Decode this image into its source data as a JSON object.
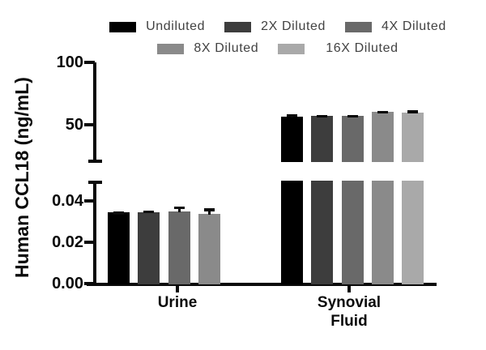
{
  "chart_data": {
    "type": "bar",
    "title": "",
    "ylabel": "Human CCL18 (ng/mL)",
    "xlabel": "",
    "categories": [
      "Urine",
      "Synovial Fluid"
    ],
    "category_label_lines": [
      [
        "Urine"
      ],
      [
        "Synovial",
        "Fluid"
      ]
    ],
    "series": [
      {
        "name": "Undiluted",
        "color": "#000000",
        "values": [
          0.0346,
          56.8
        ],
        "errors": [
          0.0003,
          1.9
        ]
      },
      {
        "name": "2X Diluted",
        "color": "#3d3d3d",
        "values": [
          0.0347,
          57.1
        ],
        "errors": [
          0.0006,
          0.9
        ]
      },
      {
        "name": "4X Diluted",
        "color": "#696969",
        "values": [
          0.035,
          56.9
        ],
        "errors": [
          0.0024,
          1.0
        ]
      },
      {
        "name": "8X Diluted",
        "color": "#8a8a8a",
        "values": [
          0.0337,
          60.1
        ],
        "errors": [
          0.0026,
          1.1
        ]
      },
      {
        "name": "16X Diluted",
        "color": "#a9a9a9",
        "values": [
          null,
          59.9
        ],
        "errors": [
          null,
          1.6
        ]
      }
    ],
    "axis_break": true,
    "upper_axis": {
      "tick_labels": [
        "50",
        "100"
      ],
      "tick_values": [
        50,
        100
      ],
      "range": [
        18.8,
        100
      ]
    },
    "lower_axis": {
      "tick_labels": [
        "0.00",
        "0.02",
        "0.04"
      ],
      "tick_values": [
        0,
        0.02,
        0.04
      ],
      "range": [
        0,
        0.0506
      ]
    },
    "grid": false,
    "legend_position": "top",
    "background": "#ffffff",
    "axis_color": "#0a0a0a"
  }
}
